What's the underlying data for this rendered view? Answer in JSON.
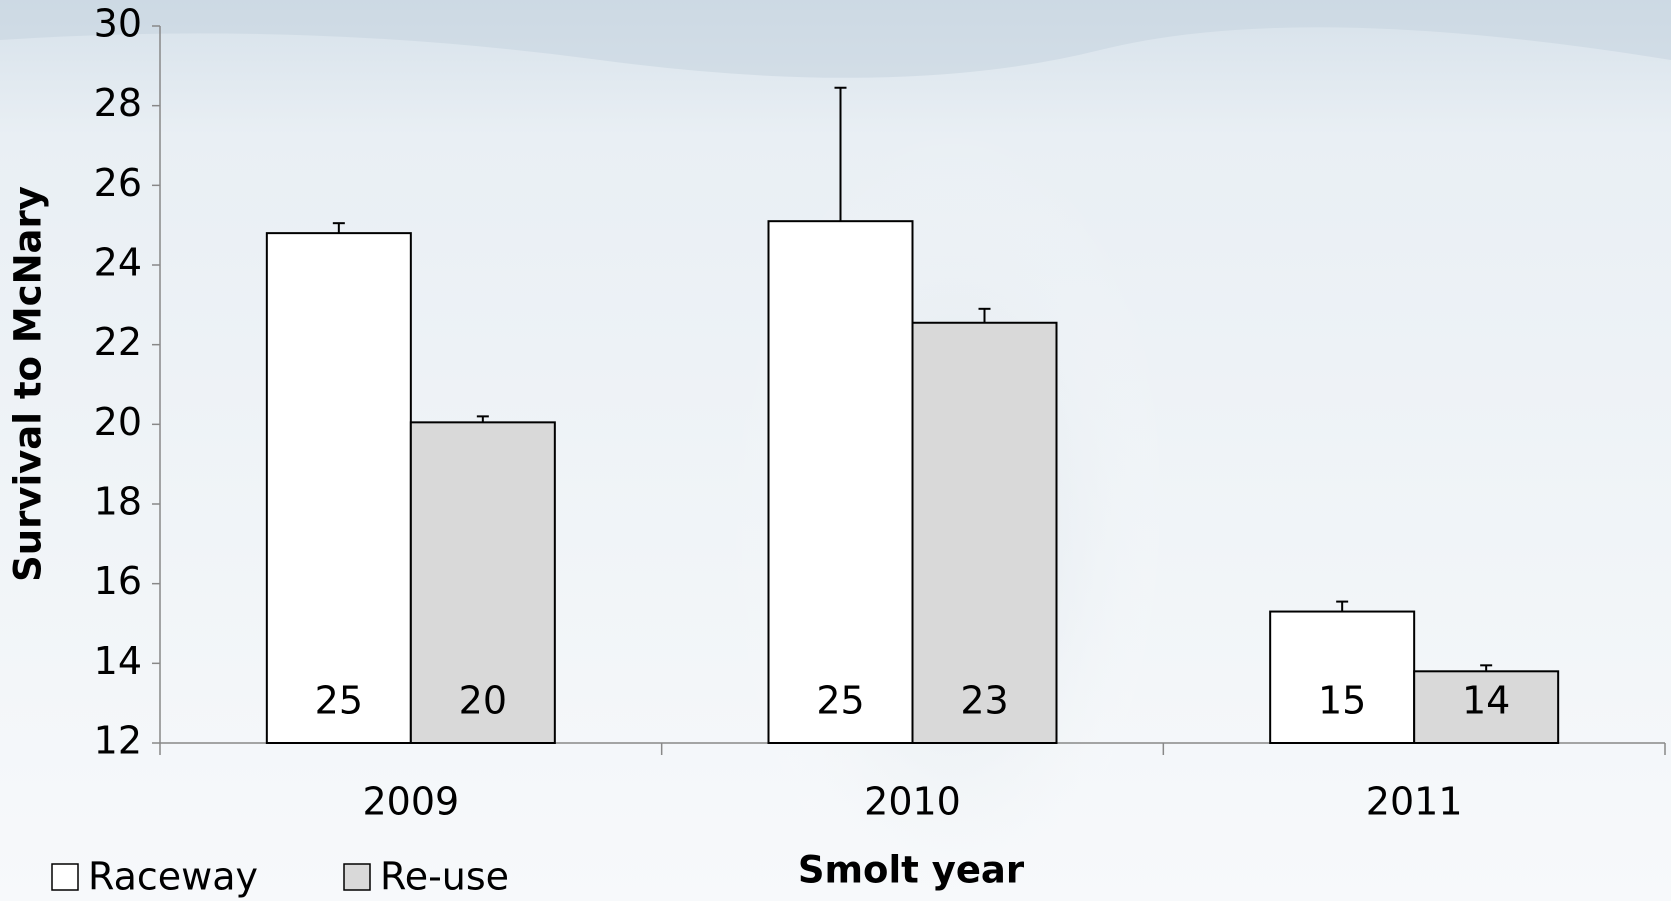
{
  "chart_data": {
    "type": "bar",
    "x_label": "Smolt year",
    "y_label": "Survival to McNary",
    "categories": [
      "2009",
      "2010",
      "2011"
    ],
    "series": [
      {
        "name": "Raceway",
        "color": "#ffffff",
        "values": [
          24.8,
          25.1,
          15.3
        ],
        "errors": [
          0.25,
          3.35,
          0.25
        ],
        "value_labels": [
          "25",
          "25",
          "15"
        ]
      },
      {
        "name": "Re-use",
        "color": "#d9d9d9",
        "values": [
          20.05,
          22.55,
          13.8
        ],
        "errors": [
          0.15,
          0.35,
          0.15
        ],
        "value_labels": [
          "20",
          "23",
          "14"
        ]
      }
    ],
    "ylim": [
      12,
      30
    ],
    "yticks": [
      12,
      14,
      16,
      18,
      20,
      22,
      24,
      26,
      28,
      30
    ],
    "grid": false,
    "legend": "bottom-left"
  }
}
